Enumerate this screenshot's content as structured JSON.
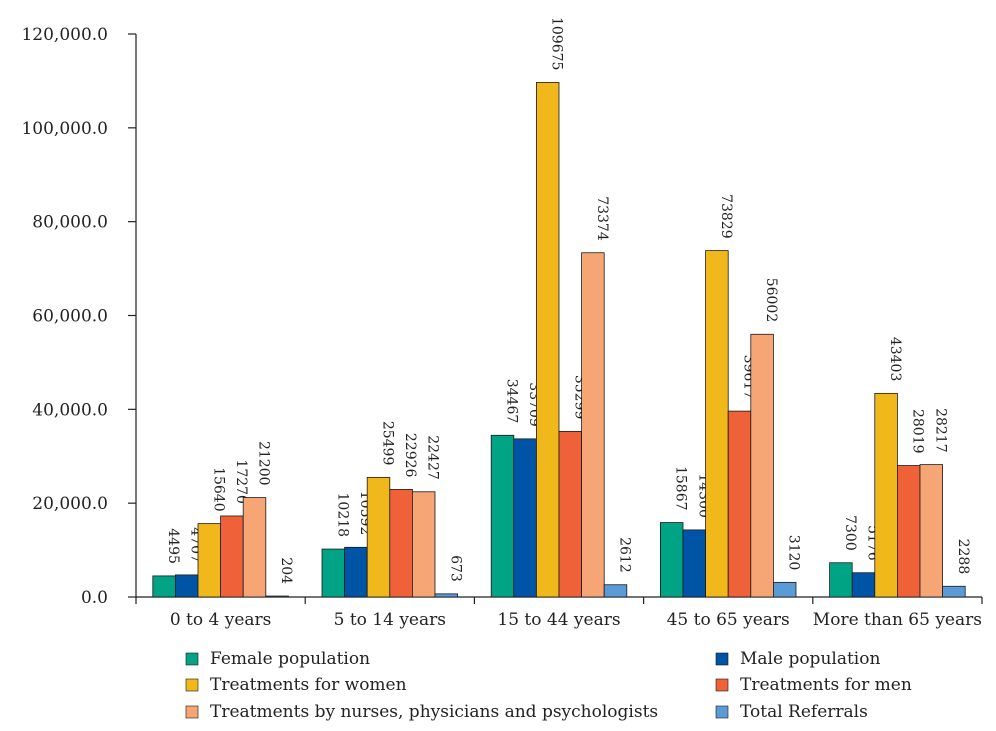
{
  "chart_data": {
    "type": "bar",
    "categories": [
      "0 to 4 years",
      "5 to 14 years",
      "15 to 44 years",
      "45 to 65 years",
      "More than 65 years"
    ],
    "series": [
      {
        "name": "Female population",
        "values": [
          4495,
          10218,
          34467,
          15867,
          7300
        ],
        "color": "#00a383"
      },
      {
        "name": "Male population",
        "values": [
          4707,
          10592,
          33709,
          14300,
          5176
        ],
        "color": "#0054a6"
      },
      {
        "name": "Treatments for women",
        "values": [
          15640,
          25499,
          109675,
          73829,
          43403
        ],
        "color": "#f1b81c"
      },
      {
        "name": "Treatments for men",
        "values": [
          17270,
          22926,
          35299,
          39617,
          28019
        ],
        "color": "#ef6239"
      },
      {
        "name": "Treatments by nurses, physicians and psychologists",
        "values": [
          21200,
          22427,
          73374,
          56002,
          28217
        ],
        "color": "#f6a574"
      },
      {
        "name": "Total Referrals",
        "values": [
          204,
          673,
          2612,
          3120,
          2288
        ],
        "color": "#5b9bd5"
      }
    ],
    "yticks": [
      "0.0",
      "20,000.0",
      "40,000.0",
      "60,000.0",
      "80,000.0",
      "100,000.0",
      "120,000.0"
    ],
    "ylim": [
      0,
      120000
    ],
    "grid": false,
    "legend_position": "bottom",
    "title": "",
    "xlabel": "",
    "ylabel": ""
  }
}
